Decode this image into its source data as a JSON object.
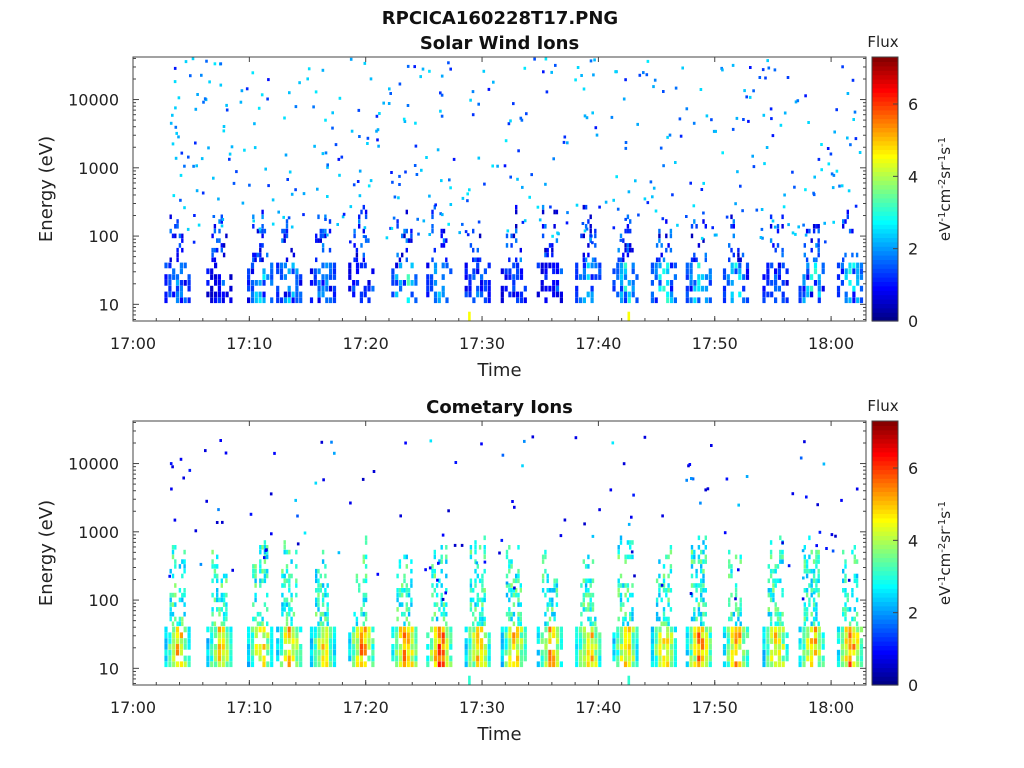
{
  "figure": {
    "title": "RPCICA160228T17.PNG"
  },
  "chart_data": [
    {
      "type": "heatmap",
      "title": "Solar Wind Ions",
      "xlabel": "Time",
      "ylabel": "Energy (eV)",
      "x_ticks": [
        "17:00",
        "17:10",
        "17:20",
        "17:30",
        "17:40",
        "17:50",
        "18:00"
      ],
      "y_ticks": [
        "10",
        "100",
        "1000",
        "10000"
      ],
      "y_scale": "log",
      "colorbar": {
        "label": "Flux",
        "unit": "eV-1cm-2sr-1s-1",
        "ticks": [
          "0",
          "2",
          "4",
          "6"
        ],
        "range": [
          0,
          7.3
        ]
      },
      "x_range": [
        "17:00",
        "18:03"
      ],
      "y_range": [
        5.7,
        42000
      ],
      "dominant_features": "bursts near 10-40 eV every ~3 min, scattered sparse counts 100-30000 eV",
      "burst_times_min": [
        3.8,
        7.4,
        10.9,
        13.4,
        16.3,
        19.6,
        23.3,
        26.3,
        29.6,
        32.7,
        35.8,
        39.1,
        42.3,
        45.6,
        48.6,
        51.8,
        55.2,
        58.3,
        61.6
      ],
      "burst_peak_flux": [
        2.3,
        1.0,
        3.0,
        2.8,
        2.4,
        1.5,
        3.6,
        2.6,
        2.0,
        1.6,
        1.2,
        2.7,
        3.2,
        3.4,
        3.2,
        3.0,
        2.0,
        3.3,
        3.0
      ]
    },
    {
      "type": "heatmap",
      "title": "Cometary Ions",
      "xlabel": "Time",
      "ylabel": "Energy (eV)",
      "x_ticks": [
        "17:00",
        "17:10",
        "17:20",
        "17:30",
        "17:40",
        "17:50",
        "18:00"
      ],
      "y_ticks": [
        "10",
        "100",
        "1000",
        "10000"
      ],
      "y_scale": "log",
      "colorbar": {
        "label": "Flux",
        "unit": "eV-1cm-2sr-1s-1",
        "ticks": [
          "0",
          "2",
          "4",
          "6"
        ],
        "range": [
          0,
          7.3
        ]
      },
      "x_range": [
        "17:00",
        "18:03"
      ],
      "y_range": [
        5.7,
        42000
      ],
      "dominant_features": "intense bursts 10-40 eV every ~3 min with upward tails to ~1000 eV",
      "burst_times_min": [
        3.8,
        7.4,
        10.9,
        13.4,
        16.3,
        19.6,
        23.3,
        26.3,
        29.6,
        32.7,
        35.8,
        39.1,
        42.3,
        45.6,
        48.6,
        51.8,
        55.2,
        58.3,
        61.6
      ],
      "burst_peak_flux": [
        5.6,
        5.4,
        5.5,
        5.6,
        5.2,
        6.0,
        6.3,
        6.4,
        5.5,
        5.5,
        5.8,
        5.7,
        5.5,
        5.6,
        6.0,
        5.8,
        5.6,
        5.9,
        6.1
      ]
    }
  ]
}
